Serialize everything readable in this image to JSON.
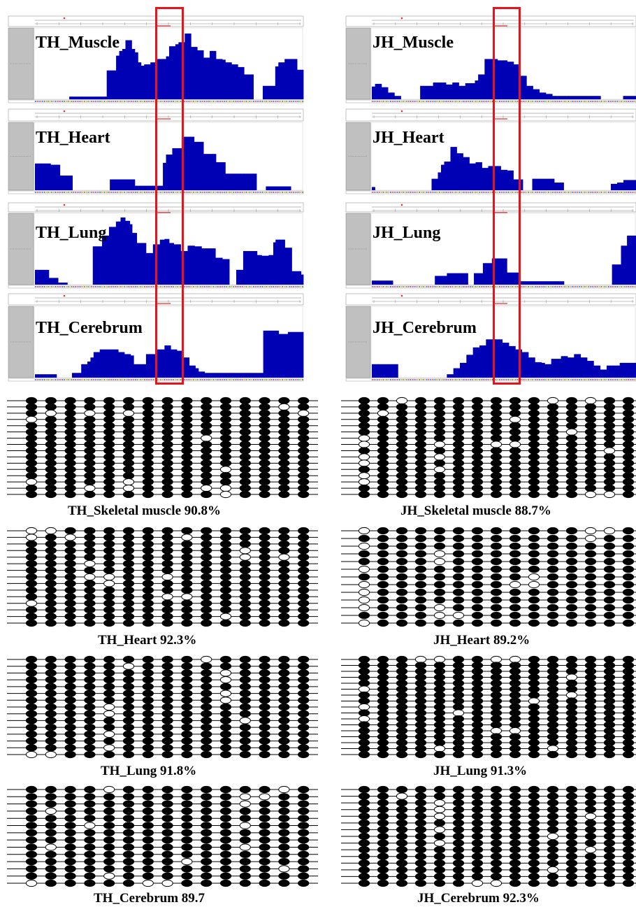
{
  "colors": {
    "coverage": "#0000b4",
    "highlight": "#e8141c",
    "gray_label": "#c0c0c0",
    "filled": "#000000",
    "empty": "#ffffff"
  },
  "tracks": [
    {
      "name": "TH_Muscle",
      "bars": [
        0,
        0,
        0,
        0,
        0,
        0,
        0,
        0,
        0,
        0,
        0,
        4,
        4,
        4,
        4,
        4,
        4,
        4,
        4,
        4,
        4,
        4,
        4,
        43,
        43,
        43,
        65,
        72,
        75,
        88,
        88,
        75,
        70,
        55,
        50,
        52,
        52,
        55,
        55,
        60,
        60,
        60,
        64,
        79,
        79,
        82,
        85,
        85,
        98,
        98,
        78,
        78,
        73,
        73,
        62,
        62,
        72,
        72,
        60,
        60,
        59,
        55,
        55,
        52,
        52,
        48,
        48,
        37,
        37,
        37,
        0,
        0,
        0,
        20,
        20,
        20,
        20,
        49,
        55,
        55,
        60,
        60,
        60,
        60,
        44,
        44
      ]
    },
    {
      "name": "TH_Heart",
      "bars": [
        42,
        42,
        42,
        42,
        42,
        40,
        40,
        40,
        23,
        23,
        23,
        23,
        0,
        0,
        0,
        0,
        0,
        0,
        0,
        0,
        0,
        0,
        0,
        0,
        17,
        17,
        17,
        17,
        17,
        17,
        17,
        17,
        7,
        7,
        7,
        7,
        7,
        7,
        7,
        7,
        7,
        43,
        56,
        56,
        66,
        66,
        66,
        84,
        84,
        84,
        84,
        76,
        76,
        76,
        57,
        57,
        57,
        57,
        44,
        44,
        44,
        26,
        26,
        26,
        26,
        26,
        26,
        26,
        26,
        26,
        26,
        0,
        0,
        0,
        6,
        6,
        6,
        6,
        6,
        6,
        6,
        6,
        0,
        0,
        0,
        0
      ]
    },
    {
      "name": "TH_Lung",
      "bars": [
        22,
        22,
        22,
        22,
        22,
        22,
        10,
        10,
        10,
        10,
        3,
        3,
        3,
        3,
        0,
        0,
        0,
        0,
        0,
        0,
        0,
        0,
        0,
        0,
        0,
        57,
        57,
        57,
        57,
        73,
        73,
        73,
        86,
        86,
        86,
        94,
        94,
        100,
        100,
        95,
        95,
        90,
        77,
        77,
        62,
        62,
        62,
        62,
        47,
        47,
        47,
        60,
        60,
        60,
        67,
        67,
        68,
        68,
        62,
        62,
        60,
        60,
        60,
        50,
        50,
        50,
        58,
        58,
        58,
        57,
        57,
        57,
        54,
        54,
        54,
        54,
        54,
        54,
        40,
        40,
        40,
        38,
        38,
        38,
        0,
        0,
        0,
        22,
        22,
        22,
        50,
        50,
        50,
        50,
        50,
        50,
        44,
        44,
        43,
        43,
        43,
        44,
        44,
        63,
        67,
        67,
        67,
        67,
        55,
        55,
        55,
        20,
        20,
        20,
        20,
        15
      ]
    },
    {
      "name": "TH_Cerebrum",
      "bars": [
        5,
        5,
        5,
        5,
        5,
        5,
        5,
        0,
        0,
        0,
        0,
        0,
        7,
        7,
        7,
        20,
        20,
        24,
        30,
        38,
        38,
        42,
        42,
        42,
        42,
        42,
        42,
        38,
        38,
        35,
        35,
        33,
        20,
        20,
        20,
        20,
        35,
        35,
        35,
        42,
        42,
        42,
        48,
        48,
        42,
        42,
        40,
        40,
        30,
        30,
        18,
        18,
        14,
        9,
        9,
        7,
        7,
        7,
        7,
        7,
        7,
        7,
        7,
        7,
        7,
        7,
        7,
        7,
        7,
        7,
        7,
        7,
        7,
        7,
        70,
        70,
        70,
        70,
        70,
        65,
        65,
        65,
        68,
        68,
        68,
        68,
        68
      ]
    },
    {
      "name": "JH_Muscle",
      "bars": [
        19,
        23,
        23,
        18,
        18,
        10,
        10,
        5,
        5,
        0,
        0,
        0,
        0,
        0,
        0,
        20,
        20,
        20,
        20,
        25,
        25,
        25,
        25,
        22,
        22,
        25,
        25,
        20,
        20,
        24,
        24,
        24,
        28,
        37,
        37,
        60,
        60,
        60,
        60,
        58,
        58,
        58,
        56,
        56,
        52,
        52,
        35,
        35,
        20,
        20,
        15,
        15,
        10,
        10,
        8,
        8,
        5,
        5,
        5,
        5,
        5,
        5,
        5,
        5,
        5,
        5,
        5,
        5,
        5,
        5,
        5,
        0,
        0,
        0,
        0,
        0,
        0,
        0,
        5,
        5,
        5,
        5
      ]
    },
    {
      "name": "JH_Heart",
      "bars": [
        5,
        0,
        0,
        0,
        0,
        0,
        0,
        0,
        0,
        0,
        0,
        0,
        0,
        0,
        0,
        0,
        0,
        0,
        0,
        18,
        18,
        28,
        40,
        45,
        45,
        68,
        68,
        58,
        58,
        52,
        52,
        42,
        42,
        44,
        44,
        35,
        35,
        38,
        38,
        38,
        38,
        32,
        32,
        31,
        31,
        17,
        17,
        17,
        0,
        0,
        0,
        18,
        18,
        18,
        18,
        18,
        18,
        18,
        12,
        12,
        12,
        0,
        0,
        0,
        0,
        0,
        0,
        0,
        0,
        0,
        0,
        0,
        0,
        0,
        0,
        0,
        10,
        10,
        12,
        12,
        16,
        16,
        16,
        16
      ]
    },
    {
      "name": "JH_Lung",
      "bars": [
        6,
        6,
        6,
        6,
        6,
        6,
        6,
        0,
        0,
        0,
        0,
        0,
        0,
        0,
        0,
        0,
        0,
        0,
        0,
        0,
        0,
        13,
        13,
        13,
        13,
        17,
        17,
        17,
        17,
        17,
        17,
        17,
        0,
        0,
        17,
        17,
        17,
        32,
        32,
        32,
        39,
        39,
        39,
        39,
        39,
        18,
        18,
        18,
        18,
        5,
        5,
        5,
        5,
        5,
        5,
        5,
        5,
        5,
        5,
        5,
        5,
        5,
        5,
        5,
        0,
        0,
        0,
        0,
        0,
        0,
        0,
        0,
        0,
        0,
        0,
        0,
        0,
        0,
        0,
        0,
        30,
        30,
        30,
        58,
        58,
        73,
        73,
        73
      ]
    },
    {
      "name": "JH_Cerebrum",
      "bars": [
        20,
        20,
        20,
        20,
        20,
        20,
        20,
        20,
        0,
        0,
        0,
        0,
        0,
        0,
        0,
        0,
        0,
        0,
        0,
        0,
        0,
        0,
        0,
        5,
        5,
        14,
        14,
        22,
        22,
        34,
        34,
        45,
        45,
        48,
        48,
        57,
        57,
        57,
        57,
        57,
        52,
        52,
        47,
        47,
        42,
        42,
        38,
        38,
        30,
        30,
        23,
        23,
        22,
        20,
        20,
        28,
        28,
        28,
        32,
        32,
        30,
        30,
        35,
        35,
        30,
        30,
        25,
        25,
        18,
        18,
        12,
        12,
        18,
        18,
        18,
        18,
        22,
        22,
        22,
        22,
        22
      ]
    }
  ],
  "bisulfite": [
    {
      "label": "TH_Skeletal muscle   90.8%",
      "unmeth": [
        [],
        [
          13
        ],
        [
          1,
          3,
          5,
          14
        ],
        [
          0
        ],
        [],
        [],
        [
          9
        ],
        [],
        [],
        [],
        [],
        [
          10
        ],
        [],
        [
          0,
          5
        ],
        [
          3,
          5,
          9,
          10
        ],
        [
          10
        ]
      ]
    },
    {
      "label": "JH_Skeletal muscle   88.7%",
      "unmeth": [
        [
          2,
          10,
          12
        ],
        [],
        [
          1
        ],
        [
          8
        ],
        [],
        [
          11
        ],
        [
          0
        ],
        [
          0,
          4,
          7,
          8
        ],
        [
          13
        ],
        [
          0,
          4
        ],
        [
          0
        ],
        [
          4
        ],
        [
          0
        ],
        [
          0
        ],
        [],
        [
          12,
          13
        ]
      ]
    },
    {
      "label": "TH_Heart   92.3%",
      "unmeth": [
        [
          0,
          1
        ],
        [
          0,
          2,
          8
        ],
        [],
        [
          11
        ],
        [
          11,
          13
        ],
        [
          3
        ],
        [],
        [
          3,
          4,
          7
        ],
        [
          4
        ],
        [],
        [
          7,
          8
        ],
        [
          0
        ],
        [],
        [
          10
        ],
        []
      ]
    },
    {
      "label": "JH_Heart   89.2%",
      "unmeth": [
        [
          0,
          12,
          13
        ],
        [
          12
        ],
        [
          0
        ],
        [
          4
        ],
        [
          4
        ],
        [
          0
        ],
        [
          9
        ],
        [
          0,
          8,
          9
        ],
        [
          0
        ],
        [
          0
        ],
        [
          0,
          4
        ],
        [
          4,
          5
        ],
        [
          0
        ]
      ]
    },
    {
      "label": "TH_Lung   91.8%",
      "unmeth": [
        [
          9
        ],
        [
          5
        ],
        [
          10
        ],
        [
          10
        ],
        [],
        [
          10
        ],
        [
          10
        ],
        [
          4
        ],
        [
          4
        ],
        [
          11
        ],
        [],
        [
          4
        ],
        [],
        [
          4
        ],
        [
          0,
          1
        ]
      ]
    },
    {
      "label": "JH_Lung   91.3%",
      "unmeth": [
        [
          3,
          4,
          7,
          8
        ],
        [],
        [],
        [
          11
        ],
        [],
        [
          0
        ],
        [
          11
        ],
        [
          9
        ],
        [
          0
        ],
        [
          5
        ],
        [
          0
        ],
        [],
        [
          7,
          8
        ],
        [],
        [],
        [
          4,
          10
        ],
        []
      ]
    },
    {
      "label": "TH_Cerebrum   89.7",
      "unmeth": [
        [
          4,
          13
        ],
        [
          11,
          12
        ],
        [
          11
        ],
        [
          1
        ],
        [],
        [
          3,
          11
        ],
        [],
        [],
        [
          1,
          11
        ],
        [],
        [
          8
        ],
        [
          13
        ],
        [
          4
        ],
        [
          0,
          6,
          7
        ]
      ]
    },
    {
      "label": "JH_Cerebrum   92.3%",
      "unmeth": [
        [],
        [
          2
        ],
        [
          4
        ],
        [
          4
        ],
        [
          4,
          12
        ],
        [],
        [
          4
        ],
        [
          10
        ],
        [
          4
        ],
        [
          12
        ],
        [],
        [],
        [
          10
        ],
        [],
        [
          6,
          7
        ]
      ]
    }
  ]
}
